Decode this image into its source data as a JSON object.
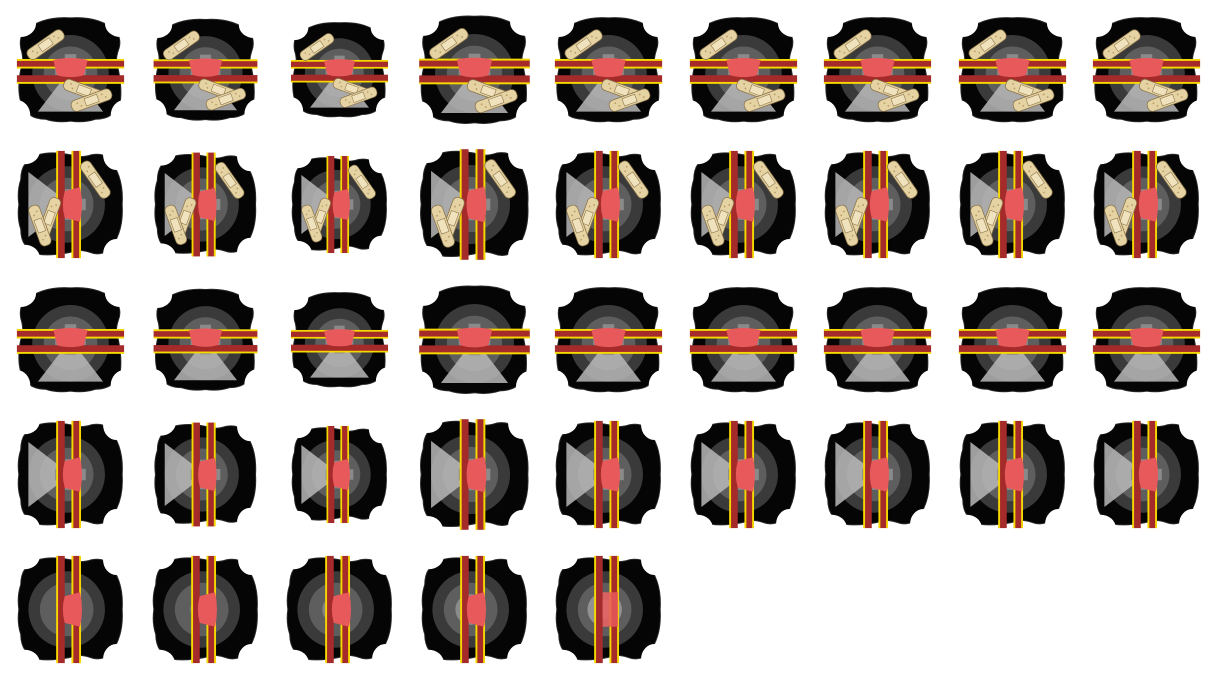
{
  "sprite_sheet": {
    "columns": 9,
    "rows": [
      {
        "name": "row-facing-up-bandaged",
        "count": 9,
        "orientation": "horizontal",
        "bandaged": true,
        "center_variant": "cross"
      },
      {
        "name": "row-facing-side-bandaged",
        "count": 9,
        "orientation": "vertical",
        "bandaged": true,
        "center_variant": "cross"
      },
      {
        "name": "row-facing-up",
        "count": 9,
        "orientation": "horizontal",
        "bandaged": false,
        "center_variant": "cross"
      },
      {
        "name": "row-facing-side",
        "count": 9,
        "orientation": "vertical",
        "bandaged": false,
        "center_variant": "cross"
      },
      {
        "name": "row-breakdown",
        "count": 5,
        "orientation": "vertical",
        "bandaged": false,
        "center_variant": "breakdown"
      }
    ],
    "frame_scale": [
      [
        0.95,
        0.92,
        0.86,
        0.98,
        0.95,
        0.95,
        0.95,
        0.95,
        0.95
      ],
      [
        0.95,
        0.92,
        0.86,
        0.98,
        0.95,
        0.95,
        0.95,
        0.95,
        0.95
      ],
      [
        0.95,
        0.92,
        0.86,
        0.98,
        0.95,
        0.95,
        0.95,
        0.95,
        0.95
      ],
      [
        0.95,
        0.92,
        0.86,
        0.98,
        0.95,
        0.95,
        0.95,
        0.95,
        0.95
      ],
      [
        0.95,
        0.95,
        0.95,
        0.95,
        0.95
      ]
    ],
    "colors": {
      "hull": "#050505",
      "dish_outer": "#3a3a3a",
      "dish_inner": "#5e5e5e",
      "cone": "#b9b9b9",
      "band": "#a52a2a",
      "band_edge": "#f5d800",
      "core": "#e8595b",
      "bandage": "#e6d3a3",
      "bandage_dot": "#b89b63",
      "notch": "#ffffff"
    }
  }
}
